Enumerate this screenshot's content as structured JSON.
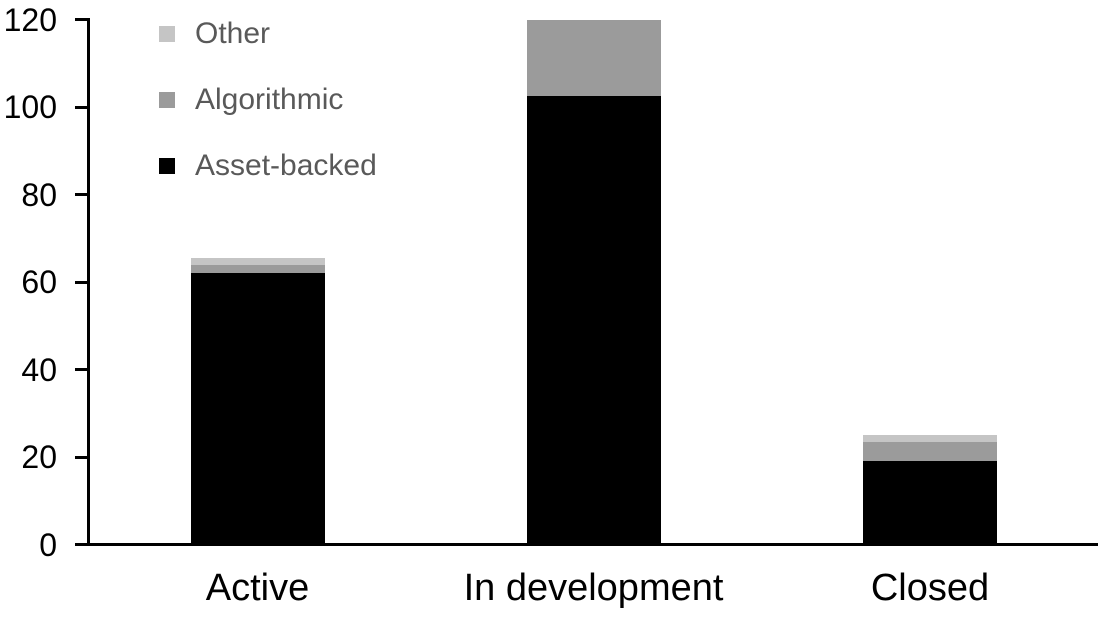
{
  "chart_data": {
    "type": "bar",
    "stacked": true,
    "title": "",
    "xlabel": "",
    "ylabel": "",
    "categories": [
      "Active",
      "In development",
      "Closed"
    ],
    "series": [
      {
        "name": "Asset-backed",
        "color": "#000000",
        "values": [
          62,
          102.5,
          19
        ]
      },
      {
        "name": "Algorithmic",
        "color": "#9b9b9b",
        "values": [
          2,
          17.5,
          4.5
        ]
      },
      {
        "name": "Other",
        "color": "#c5c5c5",
        "values": [
          1.5,
          0,
          1.5
        ]
      }
    ],
    "totals": [
      65.5,
      120,
      25
    ],
    "ylim": [
      0,
      120
    ],
    "yticks": [
      0,
      20,
      40,
      60,
      80,
      100,
      120
    ],
    "grid": false,
    "legend": {
      "position": "top-left",
      "order_top_to_bottom": [
        "Other",
        "Algorithmic",
        "Asset-backed"
      ],
      "text_color": "#595959"
    },
    "axis_color": "#000000",
    "background_color": "#ffffff"
  }
}
